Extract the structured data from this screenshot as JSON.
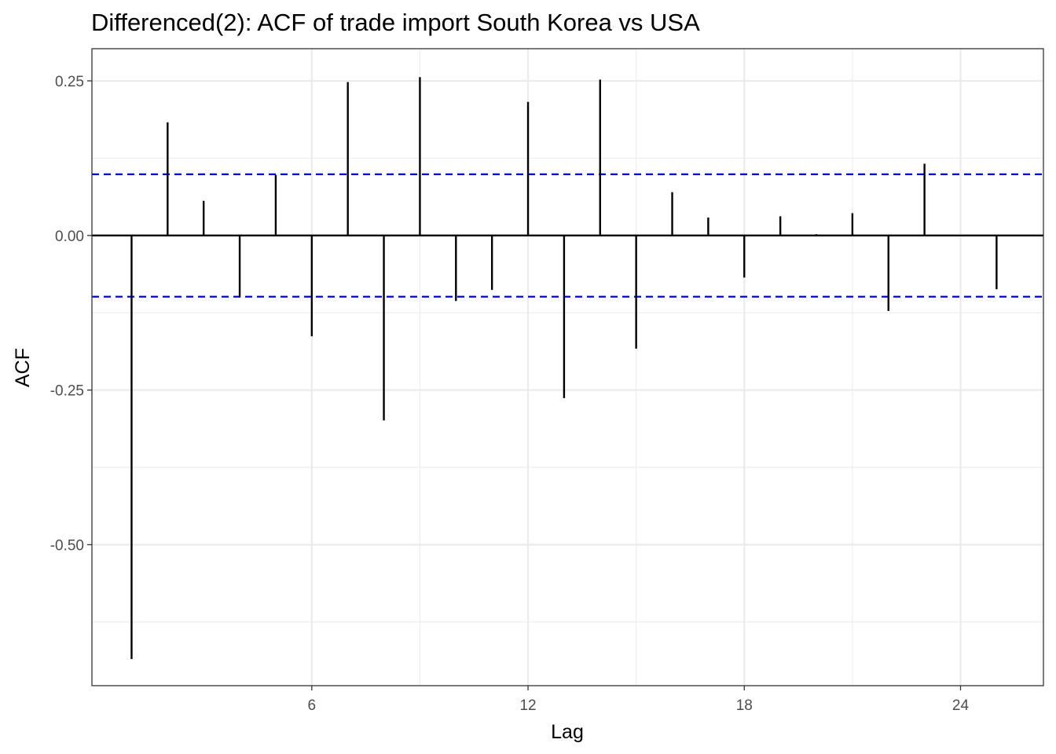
{
  "chart_data": {
    "type": "bar",
    "title": "Differenced(2): ACF of trade import South Korea vs USA",
    "xlabel": "Lag",
    "ylabel": "ACF",
    "x": [
      1,
      2,
      3,
      4,
      5,
      6,
      7,
      8,
      9,
      10,
      11,
      12,
      13,
      14,
      15,
      16,
      17,
      18,
      19,
      20,
      21,
      22,
      23,
      24,
      25
    ],
    "values": [
      -0.685,
      0.183,
      0.056,
      -0.1,
      0.098,
      -0.163,
      0.248,
      -0.299,
      0.256,
      -0.106,
      -0.088,
      0.216,
      -0.263,
      0.252,
      -0.183,
      0.07,
      0.029,
      -0.068,
      0.031,
      0.002,
      0.036,
      -0.122,
      0.116,
      0.0,
      -0.087
    ],
    "confidence_bounds": [
      0.099,
      -0.099
    ],
    "confidence_color": "#0000ff",
    "bar_color": "#000000",
    "xlim": [
      -0.1,
      26.3
    ],
    "ylim": [
      -0.728,
      0.302
    ],
    "x_ticks": [
      6,
      12,
      18,
      24
    ],
    "x_tick_labels": [
      "6",
      "12",
      "18",
      "24"
    ],
    "y_ticks": [
      0.25,
      0.0,
      -0.25,
      -0.5
    ],
    "y_tick_labels": [
      "0.25",
      "0.00",
      "-0.25",
      "-0.50"
    ],
    "y_minor_ticks": [
      0.125,
      -0.125,
      -0.375,
      -0.625
    ],
    "x_minor_ticks": [
      9,
      15,
      21
    ],
    "grid": true,
    "grid_color": "#ebebeb",
    "panel_border_color": "#333333"
  }
}
